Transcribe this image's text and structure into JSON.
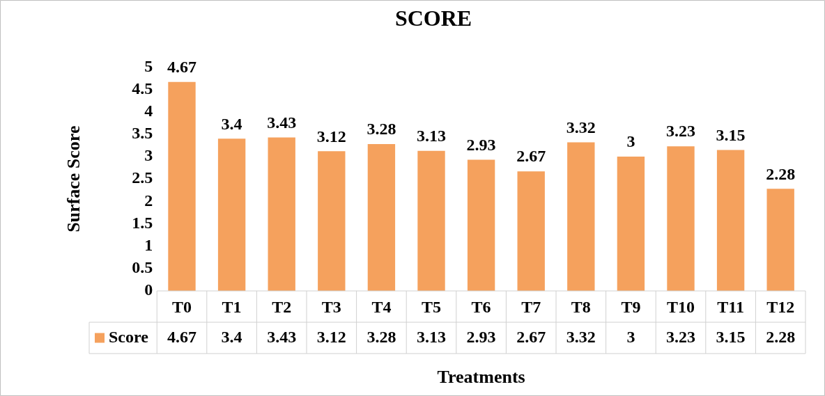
{
  "chart_data": {
    "type": "bar",
    "title": "SCORE",
    "xlabel": "Treatments",
    "ylabel": "Surface Score",
    "categories": [
      "T0",
      "T1",
      "T2",
      "T3",
      "T4",
      "T5",
      "T6",
      "T7",
      "T8",
      "T9",
      "T10",
      "T11",
      "T12"
    ],
    "series": [
      {
        "name": "Score",
        "color": "#f5a15d",
        "values": [
          4.67,
          3.4,
          3.43,
          3.12,
          3.28,
          3.13,
          2.93,
          2.67,
          3.32,
          3,
          3.23,
          3.15,
          2.28
        ]
      }
    ],
    "ylim": [
      0,
      5
    ],
    "yticks": [
      0,
      0.5,
      1,
      1.5,
      2,
      2.5,
      3,
      3.5,
      4,
      4.5,
      5
    ],
    "grid": false,
    "legend": "bottom",
    "data_labels": true,
    "annotations": [
      "4.67",
      "3.4",
      "3.43",
      "3.12",
      "3.28",
      "3.13",
      "2.93",
      "2.67",
      "3.32",
      "3",
      "3.23",
      "3.15",
      "2.28"
    ]
  }
}
